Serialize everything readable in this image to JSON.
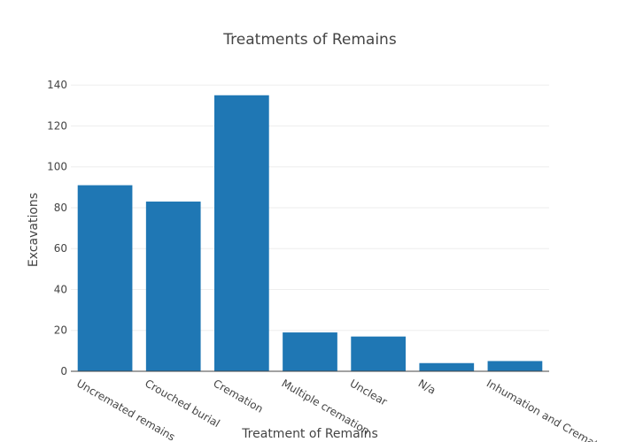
{
  "chart_data": {
    "type": "bar",
    "title": "Treatments of Remains",
    "xlabel": "Treatment of Remains",
    "ylabel": "Excavations",
    "categories": [
      "Uncremated remains",
      "Crouched burial",
      "Cremation",
      "Multiple cremation",
      "Unclear",
      "N/a",
      "Inhumation and Cremation"
    ],
    "values": [
      91,
      83,
      135,
      19,
      17,
      4,
      5
    ],
    "ylim": [
      0,
      147
    ],
    "yticks": [
      0,
      20,
      40,
      60,
      80,
      100,
      120,
      140
    ],
    "grid": true,
    "bar_color": "#1f77b4"
  }
}
